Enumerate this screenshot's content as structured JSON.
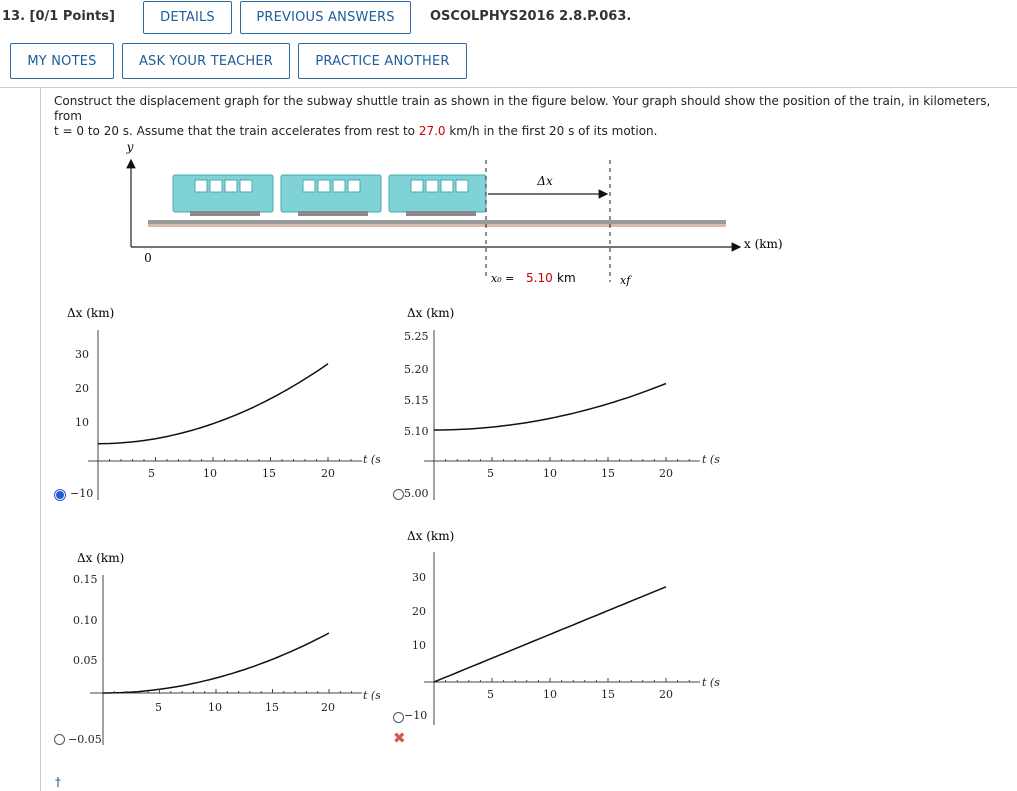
{
  "header": {
    "question_number": "13. [0/1 Points]",
    "details": "DETAILS",
    "previous_answers": "PREVIOUS ANSWERS",
    "reference": "OSCOLPHYS2016 2.8.P.063.",
    "my_notes": "MY NOTES",
    "ask_teacher": "ASK YOUR TEACHER",
    "practice_another": "PRACTICE ANOTHER"
  },
  "prompt": {
    "line1": "Construct the displacement graph for the subway shuttle train as shown in the figure below. Your graph should show the position of the train, in kilometers, from",
    "line2_a": "t = 0 to 20 s. Assume that the train accelerates from rest to ",
    "speed": "27.0",
    "line2_b": " km/h in the first 20 s of its motion."
  },
  "figure": {
    "y_label": "y",
    "origin": "0",
    "x_label": "x (km)",
    "delta_x": "Δx",
    "x0_label": "x₀ =",
    "x0_value": "5.10",
    "x0_unit": "km",
    "xf_label": "xf",
    "car_color": "#7fd3d6"
  },
  "options": [
    {
      "selected": true,
      "ylabel": "Δx (km)",
      "xlabel": "t (s)"
    },
    {
      "selected": false,
      "ylabel": "Δx (km)",
      "xlabel": "t (s)"
    },
    {
      "selected": false,
      "ylabel": "Δx (km)",
      "xlabel": "t (s)"
    },
    {
      "selected": false,
      "ylabel": "Δx (km)",
      "xlabel": "t (s)"
    }
  ],
  "chart_data": [
    {
      "type": "line",
      "ylabel": "Δx (km)",
      "xlabel": "t (s)",
      "x_ticks": [
        "5",
        "10",
        "15",
        "20"
      ],
      "y_ticks": [
        "30",
        "20",
        "10",
        "−10"
      ],
      "x": [
        0,
        5,
        10,
        15,
        20
      ],
      "y": [
        5.1,
        6.6,
        11.1,
        18.6,
        28.6
      ]
    },
    {
      "type": "line",
      "ylabel": "Δx (km)",
      "xlabel": "t (s)",
      "x_ticks": [
        "5",
        "10",
        "15",
        "20"
      ],
      "y_ticks": [
        "5.25",
        "5.20",
        "5.15",
        "5.10",
        "5.00"
      ],
      "x": [
        0,
        5,
        10,
        15,
        20
      ],
      "y": [
        5.1,
        5.1047,
        5.1188,
        5.1422,
        5.175
      ]
    },
    {
      "type": "line",
      "ylabel": "Δx (km)",
      "xlabel": "t (s)",
      "x_ticks": [
        "5",
        "10",
        "15",
        "20"
      ],
      "y_ticks": [
        "0.15",
        "0.10",
        "0.05",
        "−0.05"
      ],
      "x": [
        0,
        5,
        10,
        15,
        20
      ],
      "y": [
        0,
        0.0047,
        0.0188,
        0.0422,
        0.075
      ]
    },
    {
      "type": "line",
      "ylabel": "Δx (km)",
      "xlabel": "t (s)",
      "x_ticks": [
        "5",
        "10",
        "15",
        "20"
      ],
      "y_ticks": [
        "30",
        "20",
        "10",
        "−10"
      ],
      "x": [
        0,
        20
      ],
      "y": [
        0,
        28
      ]
    }
  ]
}
